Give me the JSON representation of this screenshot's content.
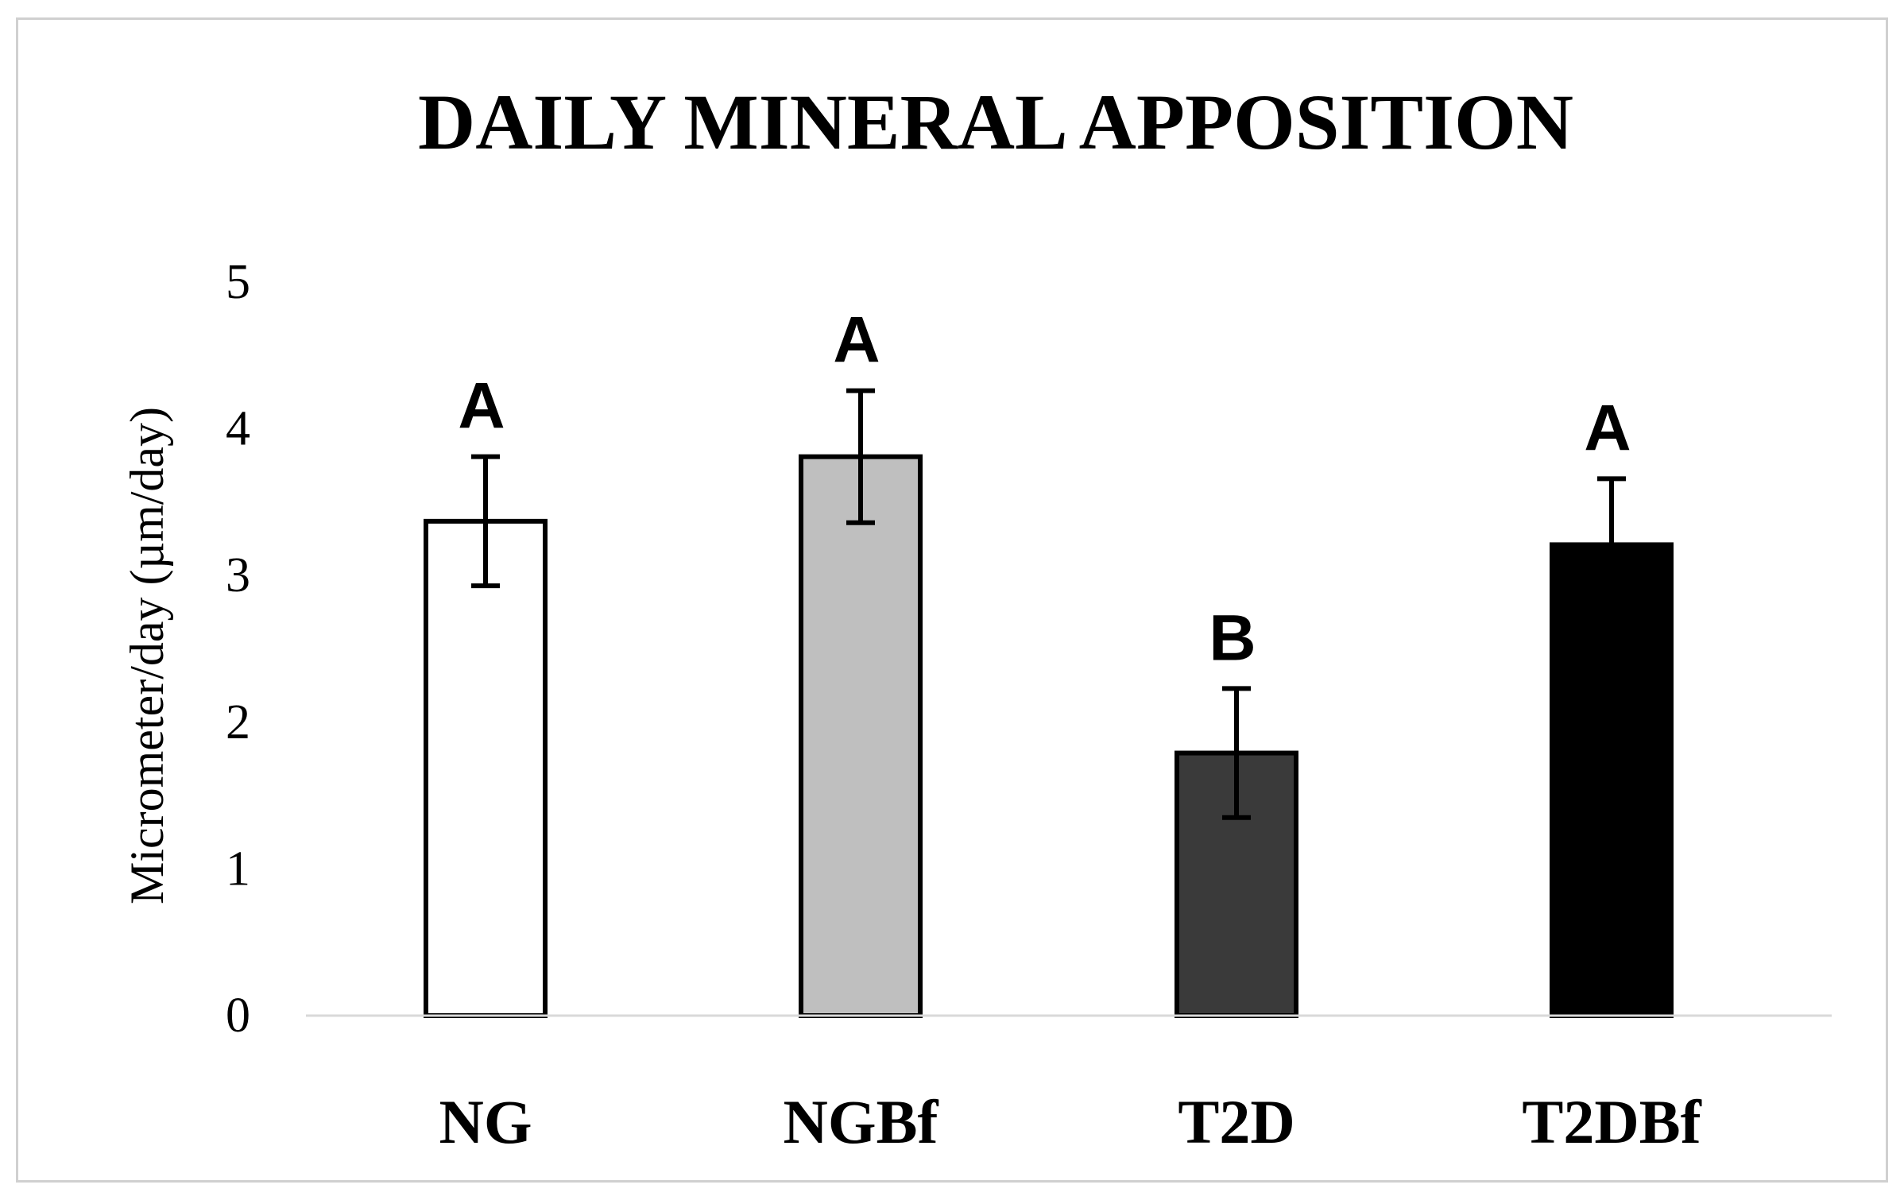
{
  "chart_data": {
    "type": "bar",
    "title": "DAILY MINERAL APPOSITION",
    "ylabel": "Micrometer/day  (µm/day)",
    "xlabel": "",
    "ylim": [
      0,
      5
    ],
    "yticks": [
      "0",
      "1",
      "2",
      "3",
      "4",
      "5"
    ],
    "grid": false,
    "categories": [
      "NG",
      "NGBf",
      "T2D",
      "T2DBf"
    ],
    "values": [
      3.37,
      3.81,
      1.79,
      3.21
    ],
    "errors": [
      0.44,
      0.45,
      0.44,
      0.45
    ],
    "significance": [
      "A",
      "A",
      "B",
      "A"
    ],
    "colors": [
      "#ffffff",
      "#bfbfbf",
      "#3a3a3a",
      "#000000"
    ]
  }
}
